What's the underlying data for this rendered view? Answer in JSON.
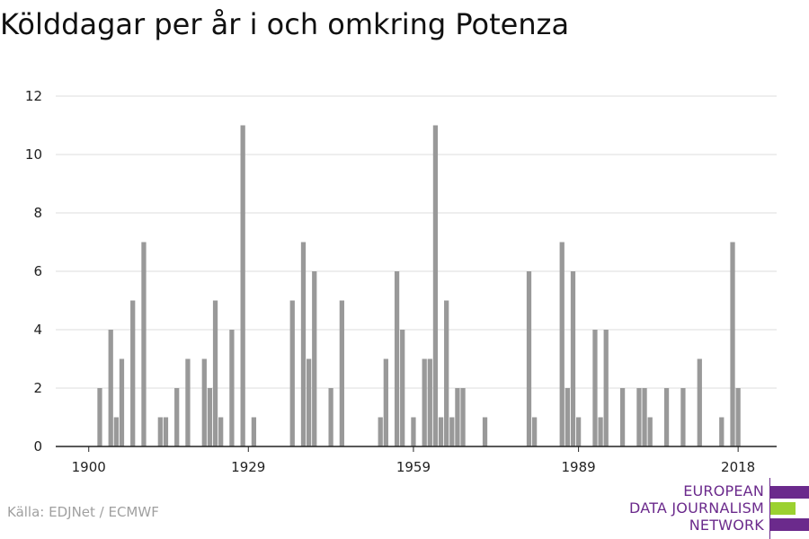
{
  "title": "Kölddagar per år i och omkring Potenza",
  "source": "Källa: EDJNet / ECMWF",
  "logo": {
    "lines": [
      "EUROPEAN",
      "DATA JOURNALISM",
      "NETWORK"
    ],
    "colors": {
      "purple": "#6b2a8c",
      "green": "#9bd130"
    }
  },
  "chart_data": {
    "type": "bar",
    "title": "Kölddagar per år i och omkring Potenza",
    "xlabel": "",
    "ylabel": "",
    "ylim": [
      0,
      12
    ],
    "yticks": [
      0,
      2,
      4,
      6,
      8,
      10,
      12
    ],
    "xlim": [
      1894,
      2025
    ],
    "xticks": [
      1900,
      1929,
      1959,
      1989,
      2018
    ],
    "grid": true,
    "bar_color": "#999999",
    "x": [
      1902,
      1904,
      1905,
      1906,
      1908,
      1910,
      1913,
      1914,
      1916,
      1918,
      1921,
      1922,
      1923,
      1924,
      1926,
      1928,
      1930,
      1937,
      1939,
      1940,
      1941,
      1944,
      1946,
      1953,
      1954,
      1956,
      1957,
      1959,
      1961,
      1962,
      1963,
      1964,
      1965,
      1966,
      1967,
      1968,
      1972,
      1980,
      1981,
      1986,
      1987,
      1988,
      1989,
      1992,
      1993,
      1994,
      1997,
      2000,
      2001,
      2002,
      2005,
      2008,
      2011,
      2015,
      2017,
      2018
    ],
    "values": [
      2,
      4,
      1,
      3,
      5,
      7,
      1,
      1,
      2,
      3,
      3,
      2,
      5,
      1,
      4,
      11,
      1,
      5,
      7,
      3,
      6,
      2,
      5,
      1,
      3,
      6,
      4,
      1,
      3,
      3,
      11,
      1,
      5,
      1,
      2,
      2,
      1,
      6,
      1,
      7,
      2,
      6,
      1,
      4,
      1,
      4,
      2,
      2,
      2,
      1,
      2,
      2,
      3,
      1,
      7,
      2
    ]
  }
}
